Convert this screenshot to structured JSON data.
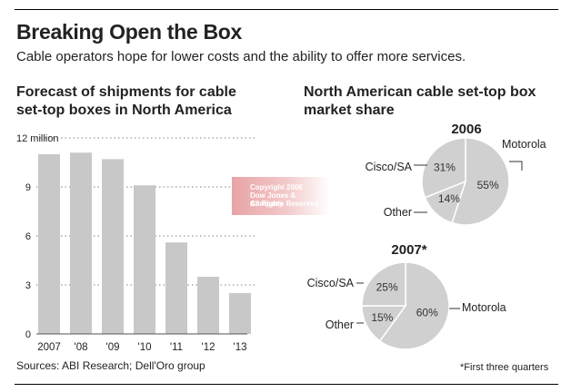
{
  "header": {
    "title": "Breaking Open the Box",
    "subtitle": "Cable operators hope for lower costs and the ability to offer more services."
  },
  "watermark": {
    "line1": "Copyright 2006",
    "line2": "Dow Jones & Company",
    "line3": "All Rights Reserved"
  },
  "footer": {
    "source": "Sources: ABI Research; Dell'Oro group",
    "footnote": "*First three quarters"
  },
  "chart_data": [
    {
      "type": "bar",
      "title_lines": [
        "Forecast of shipments for cable",
        "set-top boxes in North America"
      ],
      "categories": [
        "2007",
        "'08",
        "'09",
        "'10",
        "'11",
        "'12",
        "'13"
      ],
      "values": [
        11.0,
        11.1,
        10.7,
        9.1,
        5.6,
        3.5,
        2.5
      ],
      "yticks": [
        "12 million",
        "9",
        "6",
        "3",
        "0"
      ],
      "ytick_values": [
        12,
        9,
        6,
        3,
        0
      ],
      "ylim": [
        0,
        12
      ],
      "grid": "dotted horizontal",
      "colors": {
        "bar": "#c8c8c8",
        "grid": "#9a9a9a"
      }
    },
    {
      "type": "pie",
      "section_title_lines": [
        "North American cable set-top box",
        "market share"
      ],
      "title": "2006",
      "slices": [
        {
          "label": "Motorola",
          "value": 55,
          "value_label": "55%"
        },
        {
          "label": "Other",
          "value": 14,
          "value_label": "14%"
        },
        {
          "label": "Cisco/SA",
          "value": 31,
          "value_label": "31%"
        }
      ],
      "colors": {
        "fill": "#d0d0d0",
        "edge": "#ffffff"
      }
    },
    {
      "type": "pie",
      "title": "2007*",
      "slices": [
        {
          "label": "Motorola",
          "value": 60,
          "value_label": "60%"
        },
        {
          "label": "Other",
          "value": 15,
          "value_label": "15%"
        },
        {
          "label": "Cisco/SA",
          "value": 25,
          "value_label": "25%"
        }
      ],
      "colors": {
        "fill": "#d0d0d0",
        "edge": "#ffffff"
      }
    }
  ]
}
